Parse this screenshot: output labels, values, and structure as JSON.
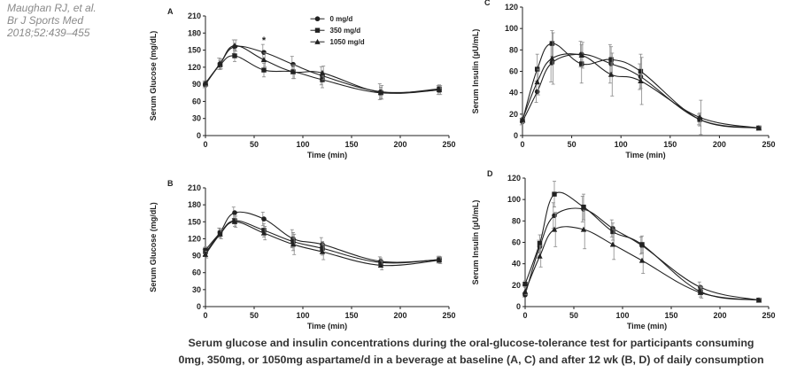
{
  "citation": {
    "line1": "Maughan RJ, et al.",
    "line2": "Br J Sports Med",
    "line3": "2018;52:439–455"
  },
  "caption": {
    "line1": "Serum glucose and insulin concentrations during the oral-glucose-tolerance test for participants consuming",
    "line2": "0mg, 350mg, or 1050mg aspartame/d in a beverage at baseline (A, C) and after 12 wk (B, D) of daily consumption"
  },
  "legend": {
    "items": [
      {
        "label": "0 mg/d",
        "marker": "circle"
      },
      {
        "label": "350 mg/d",
        "marker": "square"
      },
      {
        "label": "1050 mg/d",
        "marker": "triangle"
      }
    ]
  },
  "colors": {
    "line": "#222222",
    "error": "#888888",
    "axis": "#222222"
  },
  "chart_data": [
    {
      "id": "A",
      "type": "line",
      "title": "A",
      "xlabel": "Time (min)",
      "ylabel": "Serum Glucose (mg/dL)",
      "xlim": [
        0,
        250
      ],
      "xticks": [
        0,
        50,
        100,
        150,
        200,
        250
      ],
      "ylim": [
        0,
        210
      ],
      "yticks": [
        0,
        30,
        60,
        90,
        120,
        150,
        180,
        210
      ],
      "x": [
        0,
        15,
        30,
        60,
        90,
        120,
        180,
        240
      ],
      "series": [
        {
          "name": "0 mg/d",
          "values": [
            90,
            126,
            156,
            146,
            125,
            105,
            77,
            80
          ],
          "errors": [
            6,
            10,
            12,
            14,
            14,
            16,
            14,
            8
          ]
        },
        {
          "name": "350 mg/d",
          "values": [
            90,
            124,
            140,
            115,
            112,
            98,
            75,
            82
          ],
          "errors": [
            5,
            8,
            10,
            12,
            12,
            14,
            10,
            7
          ]
        },
        {
          "name": "1050 mg/d",
          "values": [
            92,
            126,
            158,
            133,
            112,
            110,
            76,
            80
          ],
          "errors": [
            5,
            9,
            10,
            12,
            12,
            12,
            12,
            8
          ]
        }
      ],
      "annotations": [
        {
          "x": 60,
          "y": 168,
          "text": "*"
        }
      ],
      "legend": true
    },
    {
      "id": "C",
      "type": "line",
      "title": "C",
      "xlabel": "Time (min)",
      "ylabel": "Serum Insulin (µU/mL)",
      "xlim": [
        0,
        250
      ],
      "xticks": [
        0,
        50,
        100,
        150,
        200,
        250
      ],
      "ylim": [
        0,
        120
      ],
      "yticks": [
        0,
        20,
        40,
        60,
        80,
        100,
        120
      ],
      "x": [
        0,
        15,
        30,
        60,
        90,
        120,
        180,
        240
      ],
      "series": [
        {
          "name": "0 mg/d",
          "values": [
            13,
            41,
            68,
            76,
            67,
            55,
            15,
            7
          ],
          "errors": [
            3,
            10,
            18,
            12,
            18,
            12,
            5,
            2
          ]
        },
        {
          "name": "350 mg/d",
          "values": [
            14,
            62,
            86,
            67,
            71,
            60,
            15,
            7
          ],
          "errors": [
            3,
            14,
            12,
            18,
            12,
            16,
            6,
            2
          ]
        },
        {
          "name": "1050 mg/d",
          "values": [
            15,
            50,
            72,
            75,
            57,
            51,
            17,
            7
          ],
          "errors": [
            3,
            12,
            24,
            12,
            20,
            22,
            16,
            2
          ]
        }
      ],
      "legend": false
    },
    {
      "id": "B",
      "type": "line",
      "title": "B",
      "xlabel": "Time (min)",
      "ylabel": "Serum Glucose (mg/dL)",
      "xlim": [
        0,
        250
      ],
      "xticks": [
        0,
        50,
        100,
        150,
        200,
        250
      ],
      "ylim": [
        0,
        210
      ],
      "yticks": [
        0,
        30,
        60,
        90,
        120,
        150,
        180,
        210
      ],
      "x": [
        0,
        15,
        30,
        60,
        90,
        120,
        180,
        240
      ],
      "series": [
        {
          "name": "0 mg/d",
          "values": [
            95,
            131,
            166,
            155,
            120,
            110,
            80,
            83
          ],
          "errors": [
            6,
            8,
            10,
            12,
            16,
            12,
            8,
            6
          ]
        },
        {
          "name": "350 mg/d",
          "values": [
            100,
            130,
            152,
            135,
            115,
            103,
            78,
            83
          ],
          "errors": [
            6,
            8,
            10,
            12,
            16,
            12,
            8,
            6
          ]
        },
        {
          "name": "1050 mg/d",
          "values": [
            92,
            128,
            150,
            130,
            110,
            97,
            73,
            82
          ],
          "errors": [
            6,
            8,
            10,
            12,
            18,
            14,
            8,
            6
          ]
        }
      ],
      "legend": false
    },
    {
      "id": "D",
      "type": "line",
      "title": "D",
      "xlabel": "Time (min)",
      "ylabel": "Serum Insulin (µU/mL)",
      "xlim": [
        0,
        250
      ],
      "xticks": [
        0,
        50,
        100,
        150,
        200,
        250
      ],
      "ylim": [
        0,
        120
      ],
      "yticks": [
        0,
        20,
        40,
        60,
        80,
        100,
        120
      ],
      "x": [
        0,
        15,
        30,
        60,
        90,
        120,
        180,
        240
      ],
      "series": [
        {
          "name": "0 mg/d",
          "values": [
            11,
            56,
            85,
            91,
            73,
            57,
            18,
            6
          ],
          "errors": [
            2,
            6,
            12,
            12,
            8,
            8,
            5,
            2
          ]
        },
        {
          "name": "350 mg/d",
          "values": [
            21,
            59,
            105,
            93,
            70,
            58,
            14,
            6
          ],
          "errors": [
            3,
            8,
            12,
            12,
            8,
            8,
            5,
            2
          ]
        },
        {
          "name": "1050 mg/d",
          "values": [
            14,
            47,
            72,
            72,
            58,
            43,
            13,
            6
          ],
          "errors": [
            3,
            10,
            16,
            18,
            14,
            12,
            5,
            2
          ]
        }
      ],
      "legend": false
    }
  ]
}
